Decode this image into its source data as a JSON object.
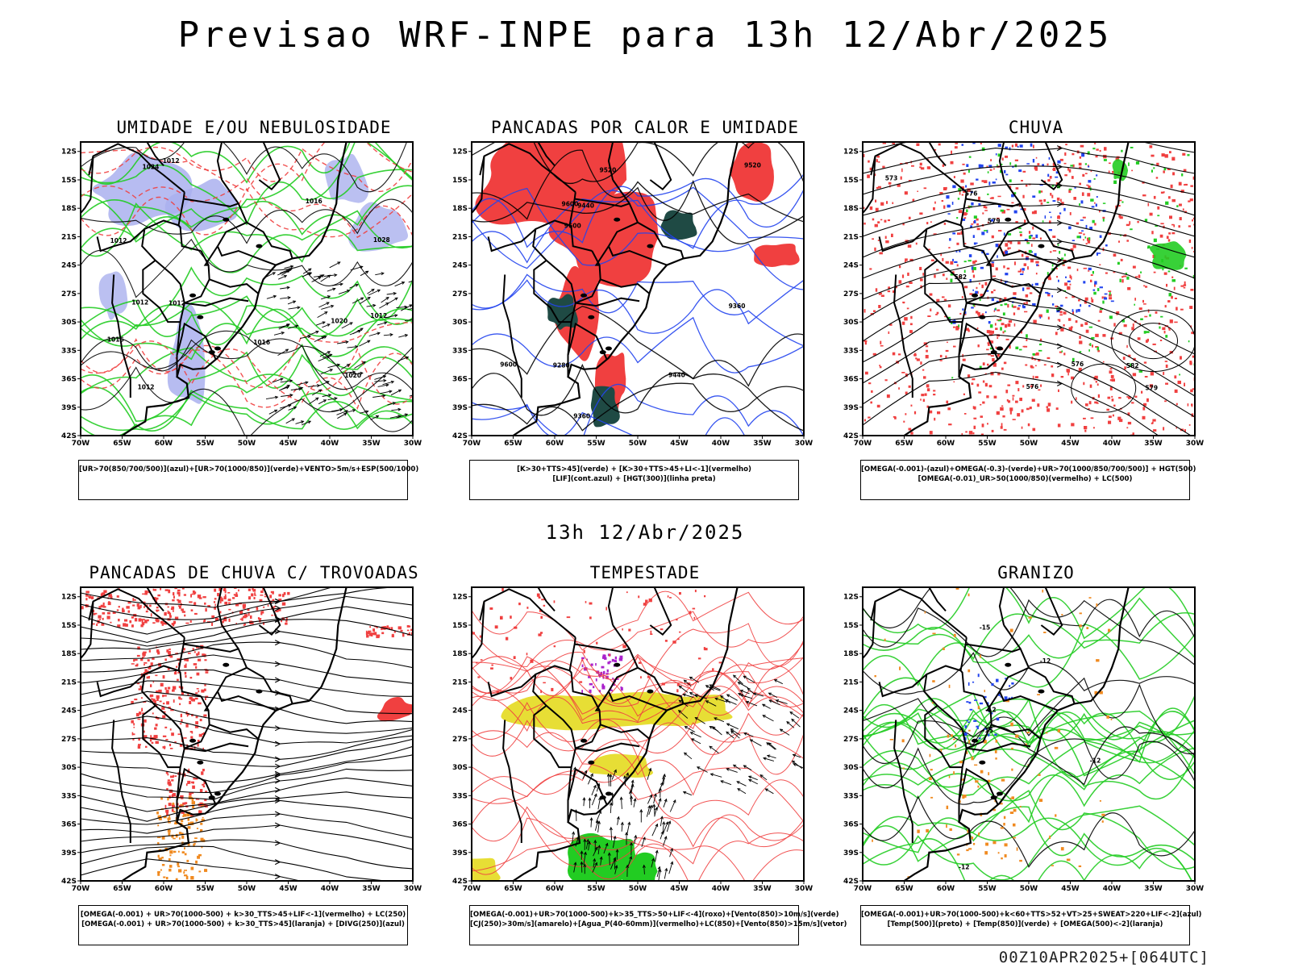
{
  "header": {
    "title": "Previsao WRF-INPE  para 13h 12/Abr/2025",
    "mid_title": "13h 12/Abr/2025",
    "footer": "00Z10APR2025+[064UTC]"
  },
  "axes": {
    "lat_labels": [
      "12S",
      "15S",
      "18S",
      "21S",
      "24S",
      "27S",
      "30S",
      "33S",
      "36S",
      "39S",
      "42S"
    ],
    "lon_labels": [
      "70W",
      "65W",
      "60W",
      "55W",
      "50W",
      "45W",
      "40W",
      "35W",
      "30W"
    ]
  },
  "colors": {
    "red": "#f04040",
    "green": "#22cc22",
    "blue": "#2244ee",
    "lavender": "#aab0ee",
    "darkteal": "#1f4a44",
    "yellow": "#e6dc2a",
    "orange": "#f08a20",
    "purple": "#aa22cc"
  },
  "panels": [
    {
      "title": "UMIDADE E/OU NEBULOSIDADE",
      "legend": [
        "[UR>70(850/700/500)](azul)+[UR>70(1000/850)](verde)+VENTO>5m/s+ESP(500/1000)"
      ],
      "labels": [
        "1012",
        "1012",
        "1012",
        "1012",
        "1012",
        "1012",
        "1016",
        "1016",
        "1016",
        "1020",
        "1020",
        "1024",
        "1028"
      ]
    },
    {
      "title": "PANCADAS POR CALOR E UMIDADE",
      "legend": [
        "[K>30+TTS>45](verde) + [K>30+TTS>45+LI<-1](vermelho)",
        "[LIF](cont.azul) + [HGT(300)](linha preta)"
      ],
      "labels": [
        "9600",
        "9600",
        "9600",
        "9520",
        "9520",
        "9440",
        "9440",
        "9360",
        "9360",
        "9280"
      ]
    },
    {
      "title": "CHUVA",
      "legend": [
        "[OMEGA(-0.001)-(azul)+OMEGA(-0.3)-(verde)+UR>70(1000/850/700/500)] + HGT(500)",
        "[OMEGA(-0.01)_UR>50(1000/850)(vermelho) + LC(500)"
      ],
      "labels": [
        "582",
        "582",
        "579",
        "579",
        "576",
        "576",
        "576",
        "573"
      ]
    },
    {
      "title": "PANCADAS DE CHUVA C/ TROVOADAS",
      "legend": [
        "[OMEGA(-0.001) + UR>70(1000-500) + k>30_TTS>45+LIF<-1](vermelho) + LC(250)",
        "[OMEGA(-0.001) + UR>70(1000-500) + k>30_TTS>45](laranja) + [DIVG(250)](azul)"
      ],
      "labels": []
    },
    {
      "title": "TEMPESTADE",
      "legend": [
        "[OMEGA(-0.001)+UR>70(1000-500)+k>35_TTS>50+LIF<-4](roxo)+[Vento(850)>10m/s](verde)",
        "[CJ(250)>30m/s](amarelo)+[Agua_P(40-60mm)](vermelho)+LC(850)+[Vento(850)>15m/s](vetor)"
      ],
      "labels": []
    },
    {
      "title": "GRANIZO",
      "legend": [
        "[OMEGA(-0.001)+UR>70(1000-500)+k<60+TTS>52+VT>25+SWEAT>220+LIF<-2](azul)",
        "[Temp(500)](preto) + [Temp(850)](verde) + [OMEGA(500)<-2](laranja)"
      ],
      "labels": [
        "-12",
        "-12",
        "-12",
        "-12",
        "-15",
        "-15"
      ]
    }
  ]
}
